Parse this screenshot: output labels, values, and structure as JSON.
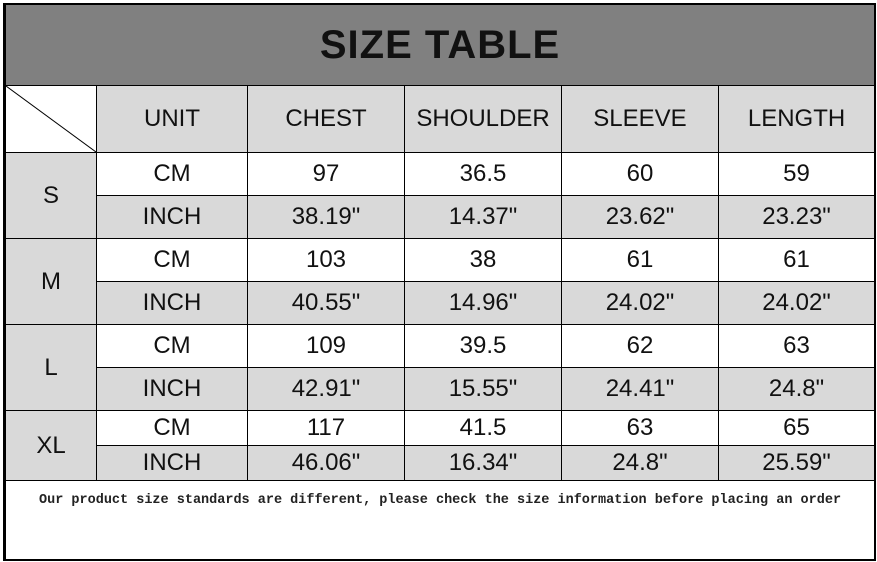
{
  "title": "SIZE TABLE",
  "headers": [
    "UNIT",
    "CHEST",
    "SHOULDER",
    "SLEEVE",
    "LENGTH"
  ],
  "sizes": [
    {
      "size": "S",
      "rows": [
        {
          "unit": "CM",
          "values": [
            "97",
            "36.5",
            "60",
            "59"
          ]
        },
        {
          "unit": "INCH",
          "values": [
            "38.19\"",
            "14.37\"",
            "23.62\"",
            "23.23\""
          ]
        }
      ]
    },
    {
      "size": "M",
      "rows": [
        {
          "unit": "CM",
          "values": [
            "103",
            "38",
            "61",
            "61"
          ]
        },
        {
          "unit": "INCH",
          "values": [
            "40.55\"",
            "14.96\"",
            "24.02\"",
            "24.02\""
          ]
        }
      ]
    },
    {
      "size": "L",
      "rows": [
        {
          "unit": "CM",
          "values": [
            "109",
            "39.5",
            "62",
            "63"
          ]
        },
        {
          "unit": "INCH",
          "values": [
            "42.91\"",
            "15.55\"",
            "24.41\"",
            "24.8\""
          ]
        }
      ]
    },
    {
      "size": "XL",
      "rows": [
        {
          "unit": "CM",
          "values": [
            "117",
            "41.5",
            "63",
            "65"
          ]
        },
        {
          "unit": "INCH",
          "values": [
            "46.06\"",
            "16.34\"",
            "24.8\"",
            "25.59\""
          ]
        }
      ]
    }
  ],
  "note": "Our product size standards are different, please check the size information before placing an order",
  "colors": {
    "title_bg": "#808080",
    "cell_gray": "#d9d9d9",
    "cell_white": "#ffffff"
  }
}
